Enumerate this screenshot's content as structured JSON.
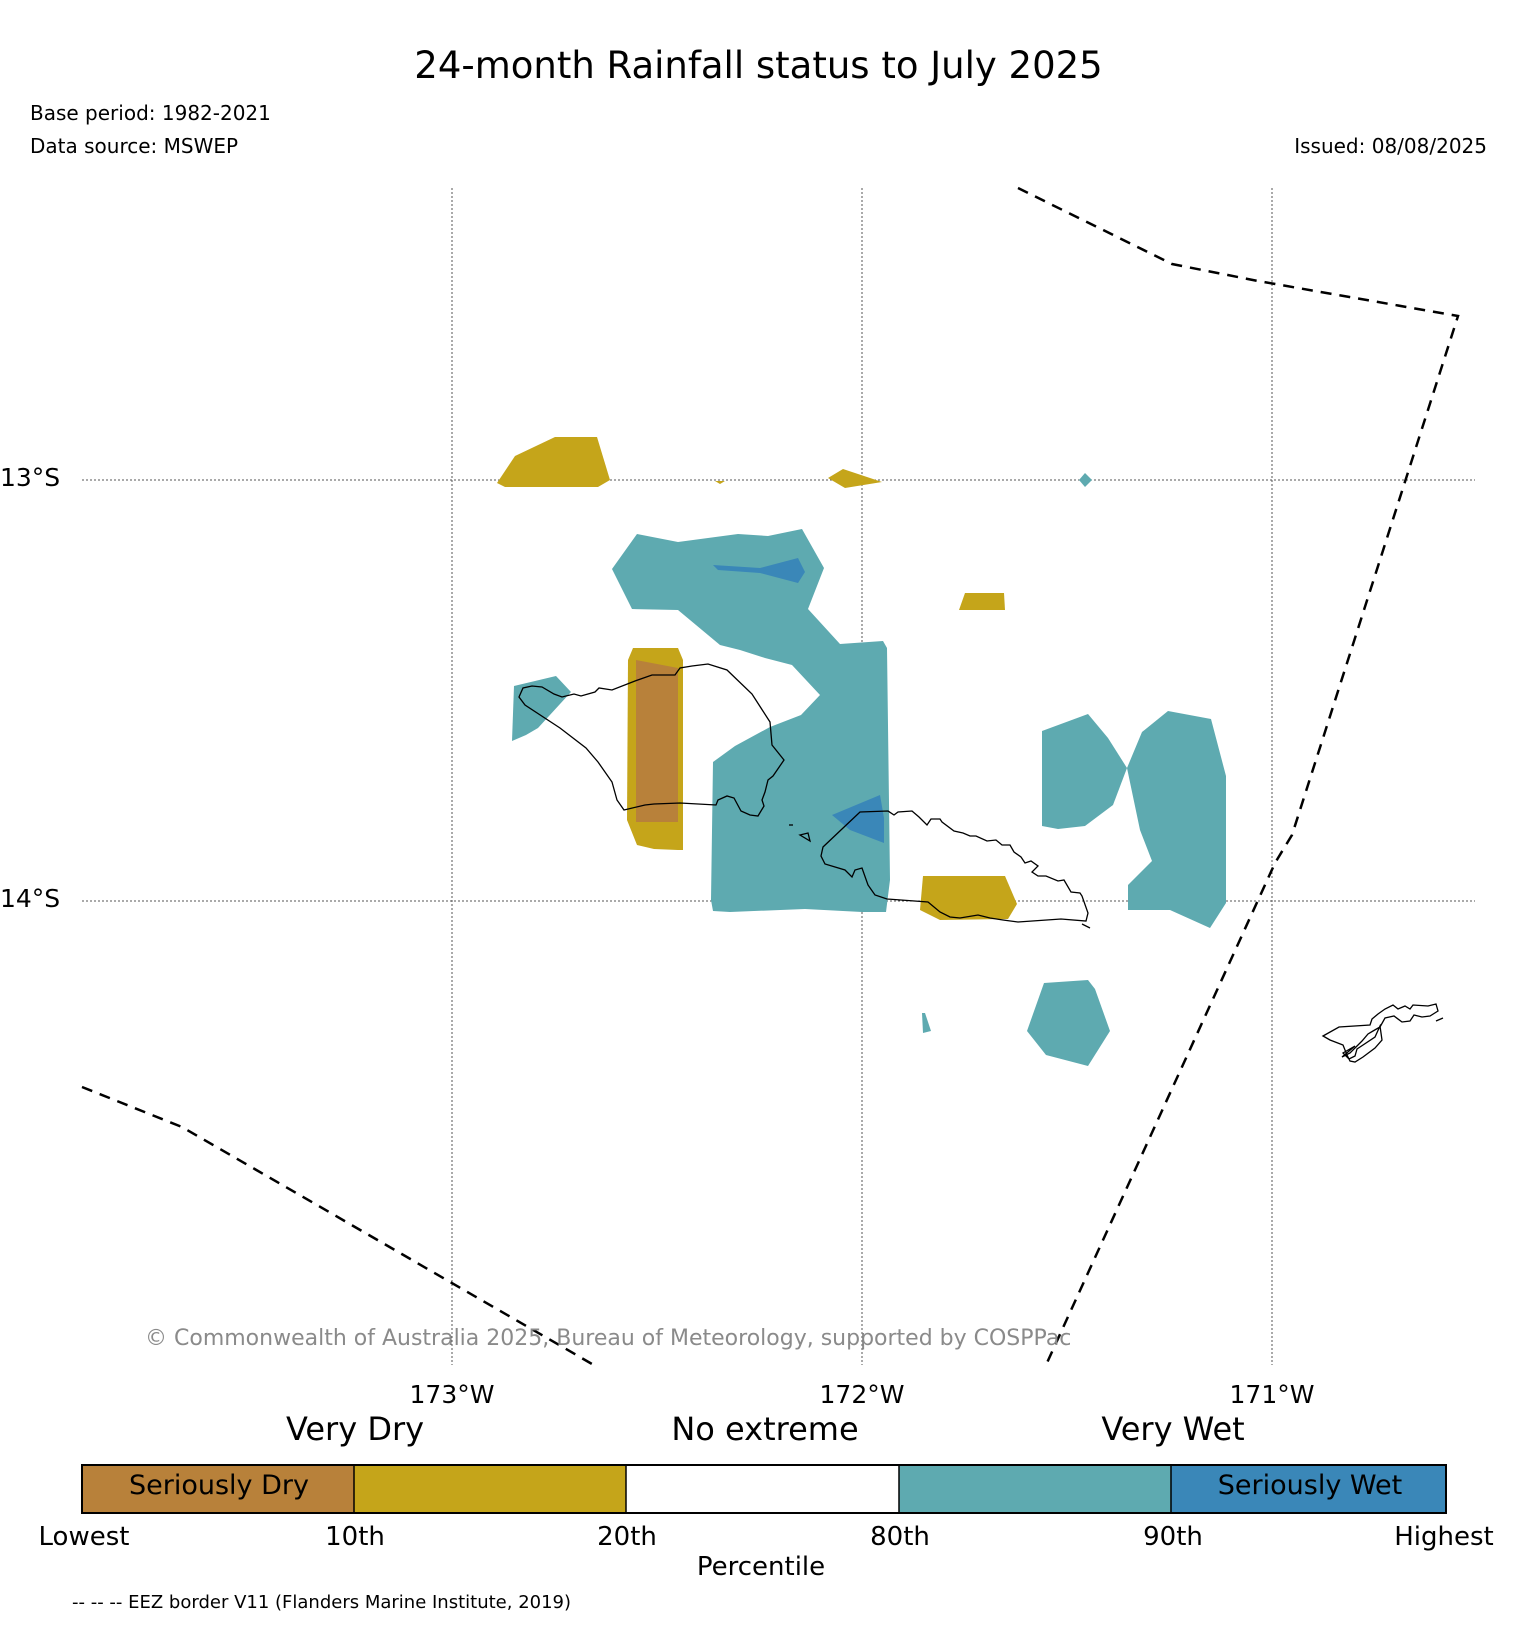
{
  "title": "24-month Rainfall status to July 2025",
  "base_period": "Base period: 1982-2021",
  "data_source": "Data source: MSWEP",
  "issued": "Issued: 08/08/2025",
  "lat_labels": [
    "13°S",
    "14°S"
  ],
  "lon_labels": [
    "173°W",
    "172°W",
    "171°W"
  ],
  "copyright": "© Commonwealth of Australia 2025, Bureau of Meteorology, supported by COSPPac",
  "legend": {
    "categories": [
      "Very Dry",
      "No extreme",
      "Very Wet"
    ],
    "segments": [
      {
        "label": "Seriously Dry",
        "color": "#b8813a"
      },
      {
        "label": "",
        "color": "#c5a51a"
      },
      {
        "label": "",
        "color": "#ffffff"
      },
      {
        "label": "",
        "color": "#5eaab0"
      },
      {
        "label": "Seriously Wet",
        "color": "#3a87b8"
      }
    ],
    "percentiles": [
      "Lowest",
      "10th",
      "20th",
      "80th",
      "90th",
      "Highest"
    ],
    "axis_title": "Percentile"
  },
  "eez_note": "-- -- -- EEZ border V11 (Flanders Marine Institute, 2019)"
}
